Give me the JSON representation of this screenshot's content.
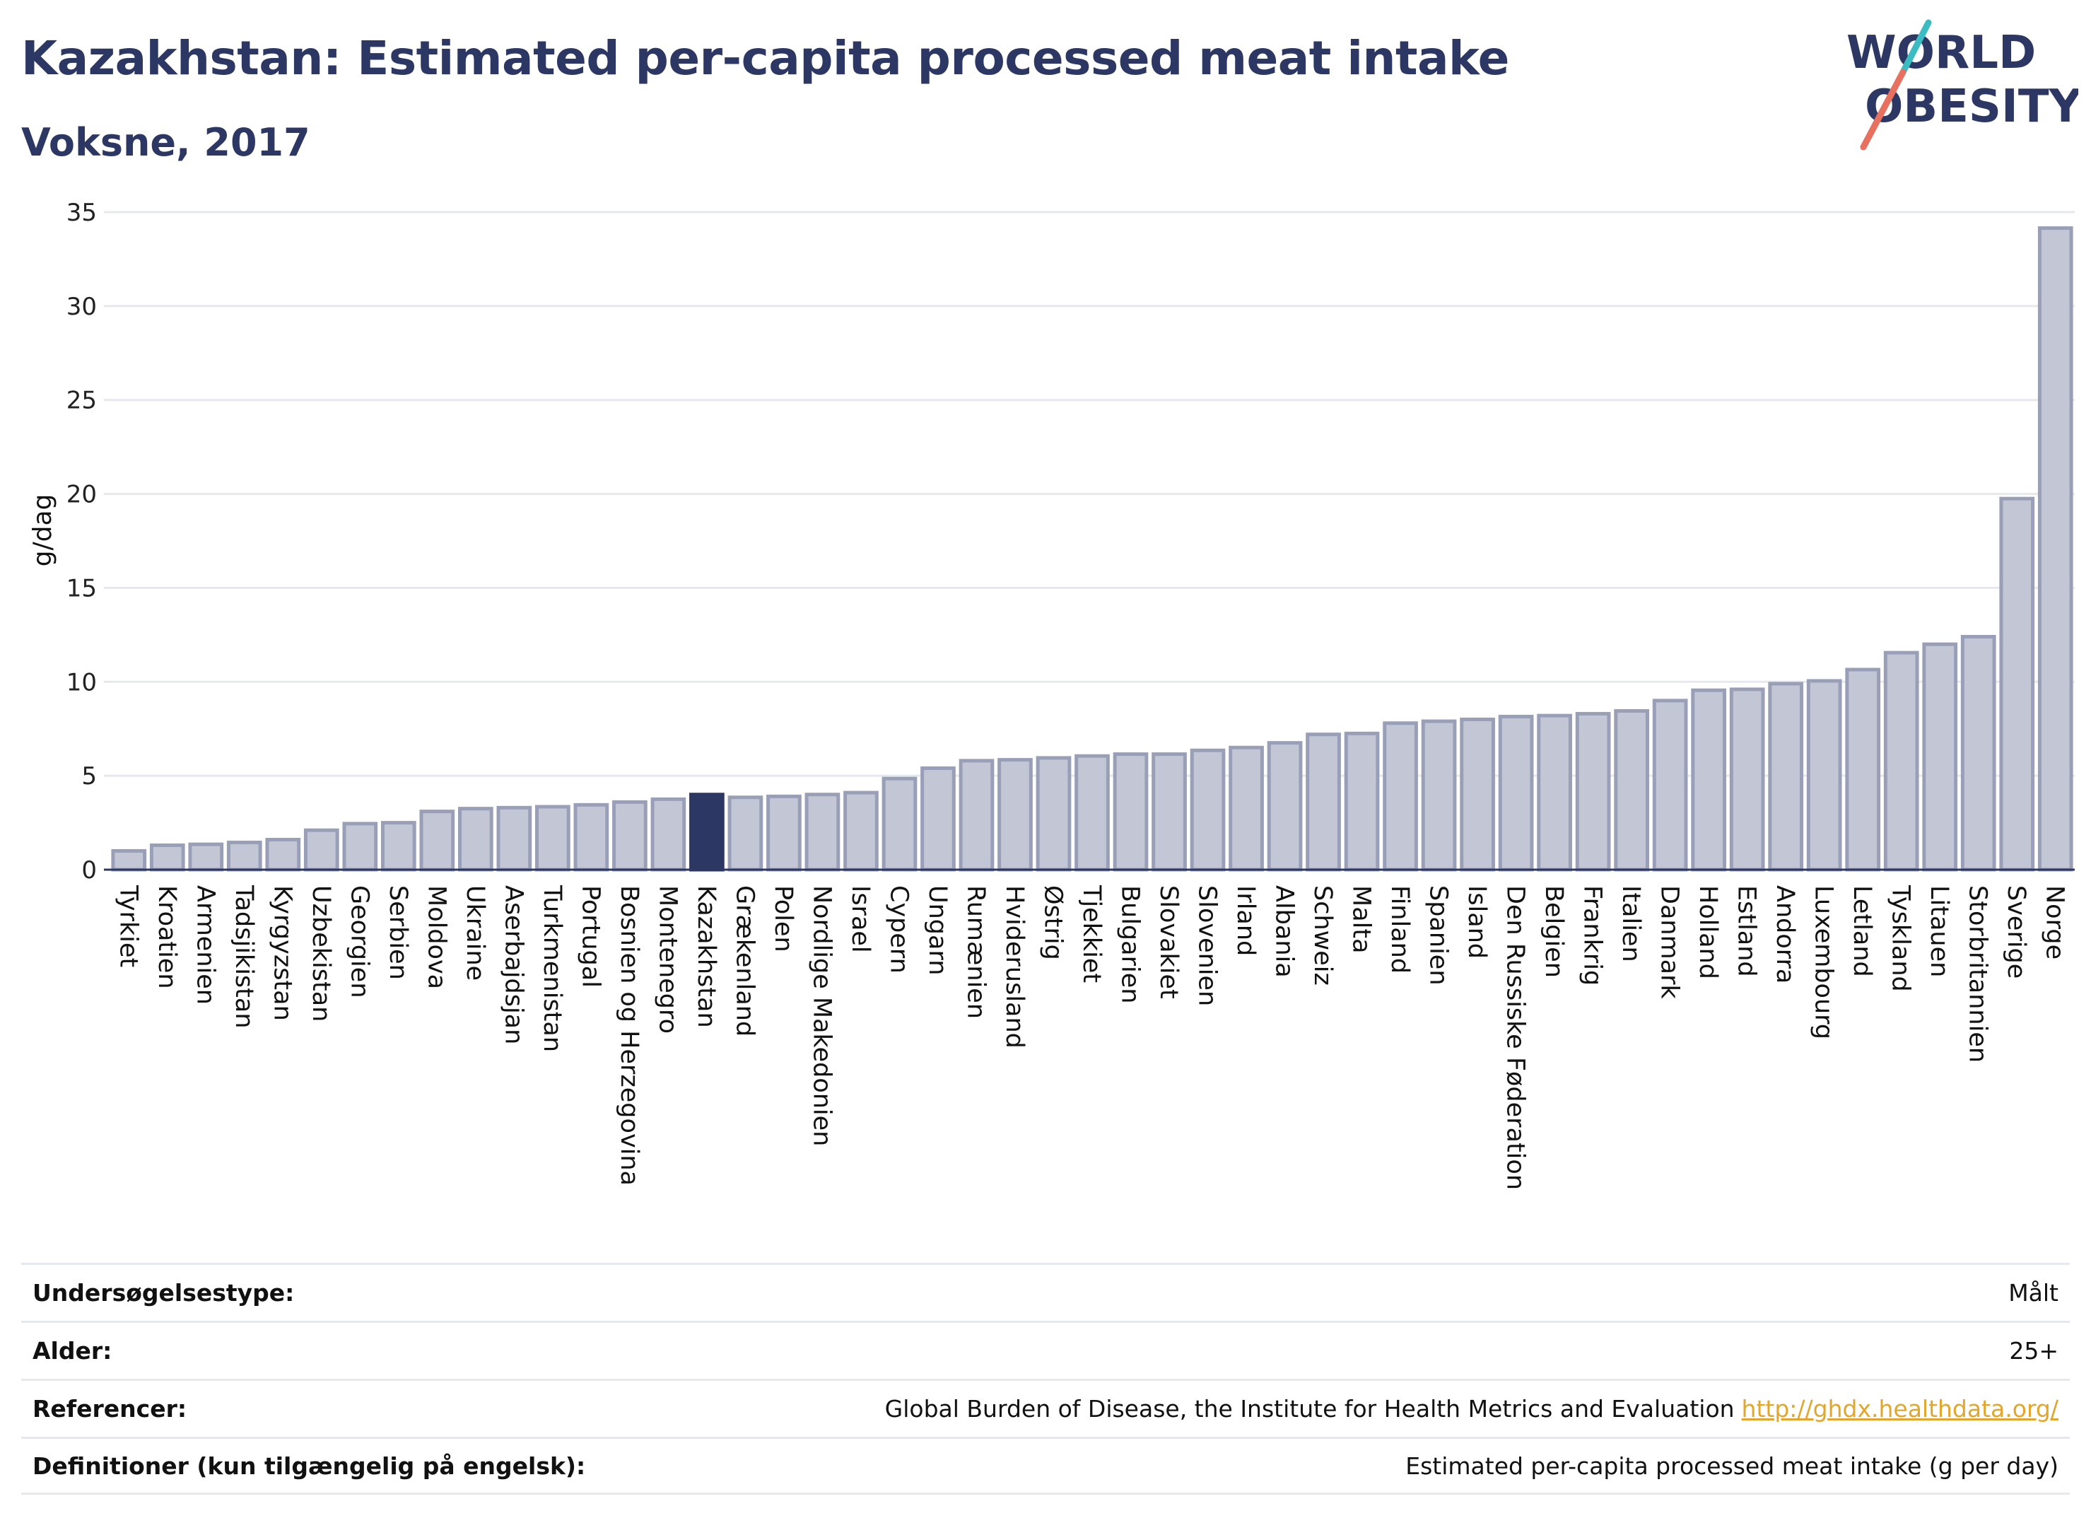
{
  "header": {
    "title": "Kazakhstan: Estimated per-capita processed meat intake",
    "subtitle": "Voksne, 2017"
  },
  "logo": {
    "line1": "WORLD",
    "line2": "OBESITY",
    "colors": {
      "text": "#2d3763",
      "slash_teal": "#3bbcc2",
      "slash_coral": "#e8705f"
    }
  },
  "colors": {
    "bar_fill": "#c3c6d4",
    "bar_stroke": "#9a9fb8",
    "highlight": "#2d3763",
    "grid": "#e6e8ee",
    "axis": "#2d3763"
  },
  "chart_data": {
    "type": "bar",
    "ylabel": "g/dag",
    "ylim": [
      0,
      35
    ],
    "yticks": [
      0,
      5,
      10,
      15,
      20,
      25,
      30,
      35
    ],
    "grid": true,
    "highlight": "Kazakhstan",
    "categories": [
      "Tyrkiet",
      "Kroatien",
      "Armenien",
      "Tadsjikistan",
      "Kyrgyzstan",
      "Uzbekistan",
      "Georgien",
      "Serbien",
      "Moldova",
      "Ukraine",
      "Aserbajdsjan",
      "Turkmenistan",
      "Portugal",
      "Bosnien og Herzegovina",
      "Montenegro",
      "Kazakhstan",
      "Grækenland",
      "Polen",
      "Nordlige Makedonien",
      "Israel",
      "Cypern",
      "Ungarn",
      "Rumænien",
      "Hviderusland",
      "Østrig",
      "Tjekkiet",
      "Bulgarien",
      "Slovakiet",
      "Slovenien",
      "Irland",
      "Albania",
      "Schweiz",
      "Malta",
      "Finland",
      "Spanien",
      "Island",
      "Den Russiske Føderation",
      "Belgien",
      "Frankrig",
      "Italien",
      "Danmark",
      "Holland",
      "Estland",
      "Andorra",
      "Luxembourg",
      "Letland",
      "Tyskland",
      "Litauen",
      "Storbritannien",
      "Sverige",
      "Norge"
    ],
    "values": [
      1.0,
      1.3,
      1.35,
      1.45,
      1.6,
      2.1,
      2.45,
      2.5,
      3.1,
      3.25,
      3.3,
      3.35,
      3.45,
      3.6,
      3.75,
      4.0,
      3.85,
      3.9,
      4.0,
      4.1,
      4.85,
      5.4,
      5.8,
      5.85,
      5.95,
      6.05,
      6.15,
      6.15,
      6.35,
      6.5,
      6.75,
      7.2,
      7.25,
      7.8,
      7.9,
      8.0,
      8.15,
      8.2,
      8.3,
      8.45,
      9.0,
      9.55,
      9.6,
      9.9,
      10.05,
      10.65,
      11.55,
      12.0,
      12.4,
      19.75,
      34.15
    ]
  },
  "info": {
    "rows": [
      {
        "key": "Undersøgelsestype:",
        "value": "Målt",
        "link": ""
      },
      {
        "key": "Alder:",
        "value": "25+",
        "link": ""
      },
      {
        "key": "Referencer:",
        "value": "Global Burden of Disease, the Institute for Health Metrics and Evaluation",
        "link": "http://ghdx.healthdata.org/"
      },
      {
        "key": "Definitioner (kun tilgængelig på engelsk):",
        "value": "Estimated per-capita processed meat intake (g per day)",
        "link": ""
      }
    ]
  }
}
